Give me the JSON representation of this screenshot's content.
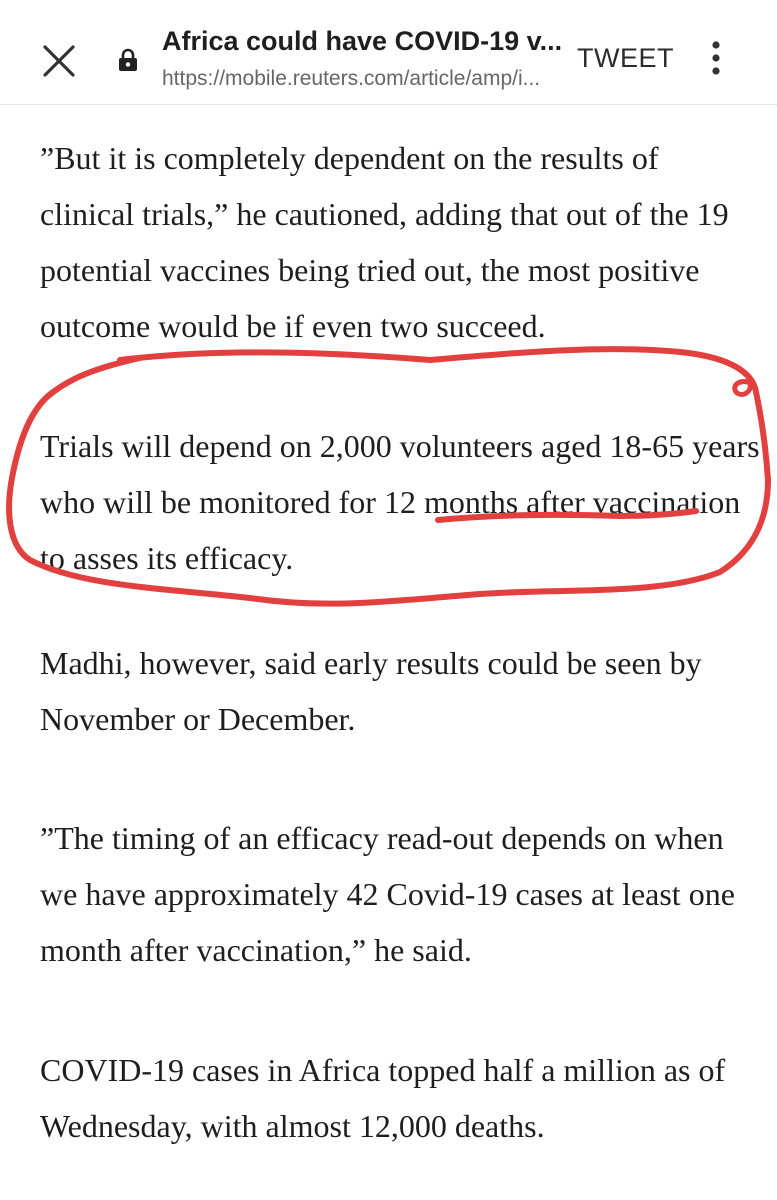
{
  "header": {
    "title": "Africa could have COVID-19 v...",
    "url": "https://mobile.reuters.com/article/amp/i...",
    "tweet_label": "TWEET",
    "close_icon": "close-icon",
    "lock_icon": "lock-icon",
    "more_icon": "more-vert-icon"
  },
  "article": {
    "paragraphs": [
      "”But it is completely dependent on the results of clinical trials,” he cautioned, adding that out of the 19 potential vaccines being tried out, the most positive outcome would be if even two succeed.",
      "Trials will depend on 2,000 volunteers aged 18-65 years who will be monitored for 12 months after vaccination to asses its efficacy.",
      "Madhi, however, said early results could be seen by November or December.",
      "”The timing of an efficacy read-out depends on when we have approximately 42 Covid-19 cases at least one month after vaccination,” he said.",
      "COVID-19 cases in Africa topped half a million as of Wednesday, with almost 12,000 deaths."
    ]
  },
  "annotation": {
    "color": "#e2403e"
  }
}
